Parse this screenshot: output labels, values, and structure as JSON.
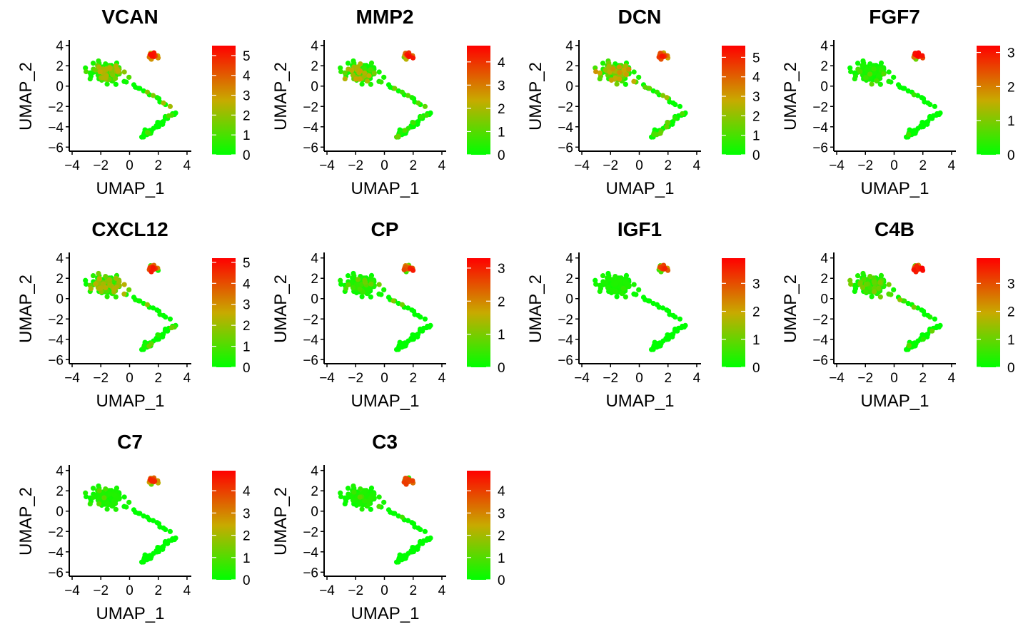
{
  "figure": {
    "description_type": "UMAP feature plots",
    "layout": {
      "columns": 4,
      "rows": 3
    }
  },
  "chart_data": [
    {
      "type": "scatter",
      "title": "VCAN",
      "xlabel": "UMAP_1",
      "ylabel": "UMAP_2",
      "xlim": [
        -4.2,
        4.3
      ],
      "ylim": [
        -6.4,
        4.4
      ],
      "xticks": [
        -4,
        -2,
        0,
        2,
        4
      ],
      "yticks": [
        -6,
        -4,
        -2,
        0,
        2,
        4
      ],
      "legend_max": 5.5,
      "legend_ticks": [
        0,
        1,
        2,
        3,
        4,
        5
      ],
      "colors": [
        "#00ff00",
        "#ff0000"
      ],
      "seed": 11,
      "hot": [
        0.55,
        0.35,
        0.85
      ]
    },
    {
      "type": "scatter",
      "title": "MMP2",
      "xlabel": "UMAP_1",
      "ylabel": "UMAP_2",
      "xlim": [
        -4.2,
        4.3
      ],
      "ylim": [
        -6.4,
        4.4
      ],
      "xticks": [
        -4,
        -2,
        0,
        2,
        4
      ],
      "yticks": [
        -6,
        -4,
        -2,
        0,
        2,
        4
      ],
      "legend_max": 4.7,
      "legend_ticks": [
        0,
        1,
        2,
        3,
        4
      ],
      "colors": [
        "#00ff00",
        "#ff0000"
      ],
      "seed": 23,
      "hot": [
        0.45,
        0.35,
        0.85
      ]
    },
    {
      "type": "scatter",
      "title": "DCN",
      "xlabel": "UMAP_1",
      "ylabel": "UMAP_2",
      "xlim": [
        -4.2,
        4.3
      ],
      "ylim": [
        -6.4,
        4.4
      ],
      "xticks": [
        -4,
        -2,
        0,
        2,
        4
      ],
      "yticks": [
        -6,
        -4,
        -2,
        0,
        2,
        4
      ],
      "legend_max": 5.6,
      "legend_ticks": [
        0,
        1,
        2,
        3,
        4,
        5
      ],
      "colors": [
        "#00ff00",
        "#ff0000"
      ],
      "seed": 37,
      "hot": [
        0.55,
        0.4,
        0.9
      ]
    },
    {
      "type": "scatter",
      "title": "FGF7",
      "xlabel": "UMAP_1",
      "ylabel": "UMAP_2",
      "xlim": [
        -4.2,
        4.3
      ],
      "ylim": [
        -6.4,
        4.4
      ],
      "xticks": [
        -4,
        -2,
        0,
        2,
        4
      ],
      "yticks": [
        -6,
        -4,
        -2,
        0,
        2,
        4
      ],
      "legend_max": 3.2,
      "legend_ticks": [
        0,
        1,
        2,
        3
      ],
      "colors": [
        "#00ff00",
        "#ff0000"
      ],
      "seed": 41,
      "hot": [
        0.15,
        0.05,
        0.7
      ]
    },
    {
      "type": "scatter",
      "title": "CXCL12",
      "xlabel": "UMAP_1",
      "ylabel": "UMAP_2",
      "xlim": [
        -4.2,
        4.3
      ],
      "ylim": [
        -6.4,
        4.4
      ],
      "xticks": [
        -4,
        -2,
        0,
        2,
        4
      ],
      "yticks": [
        -6,
        -4,
        -2,
        0,
        2,
        4
      ],
      "legend_max": 5.2,
      "legend_ticks": [
        0,
        1,
        2,
        3,
        4,
        5
      ],
      "colors": [
        "#00ff00",
        "#ff0000"
      ],
      "seed": 53,
      "hot": [
        0.6,
        0.3,
        0.85
      ]
    },
    {
      "type": "scatter",
      "title": "CP",
      "xlabel": "UMAP_1",
      "ylabel": "UMAP_2",
      "xlim": [
        -4.2,
        4.3
      ],
      "ylim": [
        -6.4,
        4.4
      ],
      "xticks": [
        -4,
        -2,
        0,
        2,
        4
      ],
      "yticks": [
        -6,
        -4,
        -2,
        0,
        2,
        4
      ],
      "legend_max": 3.3,
      "legend_ticks": [
        0,
        1,
        2,
        3
      ],
      "colors": [
        "#00ff00",
        "#ff0000"
      ],
      "seed": 67,
      "hot": [
        0.25,
        0.08,
        0.7
      ]
    },
    {
      "type": "scatter",
      "title": "IGF1",
      "xlabel": "UMAP_1",
      "ylabel": "UMAP_2",
      "xlim": [
        -4.2,
        4.3
      ],
      "ylim": [
        -6.4,
        4.4
      ],
      "xticks": [
        -4,
        -2,
        0,
        2,
        4
      ],
      "yticks": [
        -6,
        -4,
        -2,
        0,
        2,
        4
      ],
      "legend_max": 3.9,
      "legend_ticks": [
        0,
        1,
        2,
        3
      ],
      "colors": [
        "#00ff00",
        "#ff0000"
      ],
      "seed": 71,
      "hot": [
        0.05,
        0.02,
        0.6
      ]
    },
    {
      "type": "scatter",
      "title": "C4B",
      "xlabel": "UMAP_1",
      "ylabel": "UMAP_2",
      "xlim": [
        -4.2,
        4.3
      ],
      "ylim": [
        -6.4,
        4.4
      ],
      "xticks": [
        -4,
        -2,
        0,
        2,
        4
      ],
      "yticks": [
        -6,
        -4,
        -2,
        0,
        2,
        4
      ],
      "legend_max": 3.9,
      "legend_ticks": [
        0,
        1,
        2,
        3
      ],
      "colors": [
        "#00ff00",
        "#ff0000"
      ],
      "seed": 83,
      "hot": [
        0.35,
        0.12,
        0.7
      ]
    },
    {
      "type": "scatter",
      "title": "C7",
      "xlabel": "UMAP_1",
      "ylabel": "UMAP_2",
      "xlim": [
        -4.2,
        4.3
      ],
      "ylim": [
        -6.4,
        4.4
      ],
      "xticks": [
        -4,
        -2,
        0,
        2,
        4
      ],
      "yticks": [
        -6,
        -4,
        -2,
        0,
        2,
        4
      ],
      "legend_max": 4.9,
      "legend_ticks": [
        0,
        1,
        2,
        3,
        4
      ],
      "colors": [
        "#00ff00",
        "#ff0000"
      ],
      "seed": 97,
      "hot": [
        0.08,
        0.02,
        0.65
      ]
    },
    {
      "type": "scatter",
      "title": "C3",
      "xlabel": "UMAP_1",
      "ylabel": "UMAP_2",
      "xlim": [
        -4.2,
        4.3
      ],
      "ylim": [
        -6.4,
        4.4
      ],
      "xticks": [
        -4,
        -2,
        0,
        2,
        4
      ],
      "yticks": [
        -6,
        -4,
        -2,
        0,
        2,
        4
      ],
      "legend_max": 4.9,
      "legend_ticks": [
        0,
        1,
        2,
        3,
        4
      ],
      "colors": [
        "#00ff00",
        "#ff0000"
      ],
      "seed": 101,
      "hot": [
        0.1,
        0.03,
        0.75
      ]
    }
  ]
}
